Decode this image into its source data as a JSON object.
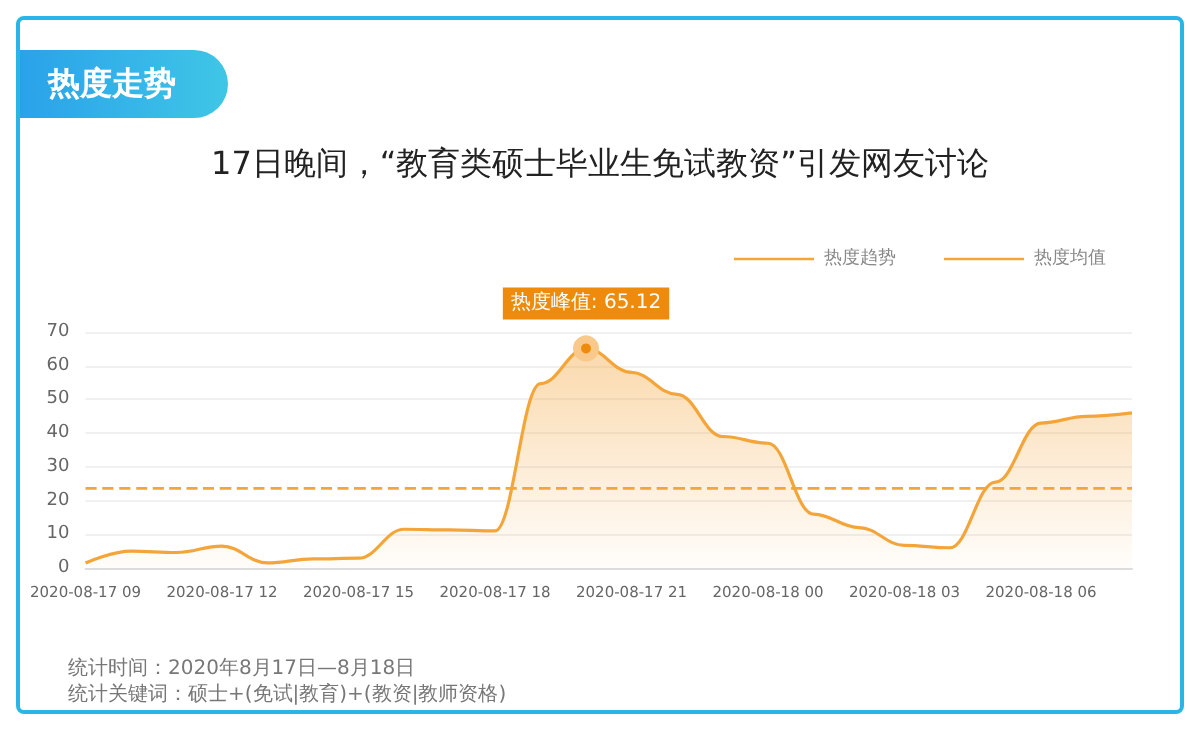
{
  "chart_data": {
    "type": "area",
    "title": "热度走势",
    "subtitle": "17日晚间，“教育类硕士毕业生免试教资”引发网友讨论",
    "categories": [
      "2020-08-17 09",
      null,
      null,
      "2020-08-17 12",
      null,
      null,
      "2020-08-17 15",
      null,
      null,
      "2020-08-17 18",
      null,
      null,
      "2020-08-17 21",
      null,
      null,
      "2020-08-18 00",
      null,
      null,
      "2020-08-18 03",
      null,
      null,
      "2020-08-18 06",
      null,
      null
    ],
    "series": [
      {
        "name": "热度趋势",
        "color": "#f4a53a",
        "values": [
          1.5,
          5,
          4.6,
          6.5,
          1.5,
          2.7,
          2.9,
          11.5,
          11.3,
          11,
          54.7,
          65.12,
          58,
          51.5,
          39,
          37,
          16,
          12,
          6.7,
          6,
          25.5,
          43,
          45,
          46
        ]
      },
      {
        "name": "热度均值",
        "type": "line",
        "line_style": "dashed",
        "color": "#f4a53a",
        "values": [
          23.6,
          23.6,
          23.6,
          23.6,
          23.6,
          23.6,
          23.6,
          23.6,
          23.6,
          23.6,
          23.6,
          23.6,
          23.6,
          23.6,
          23.6,
          23.6,
          23.6,
          23.6,
          23.6,
          23.6,
          23.6,
          23.6,
          23.6,
          23.6
        ]
      }
    ],
    "ylim": [
      0,
      70
    ],
    "yticks": [
      0,
      10,
      20,
      30,
      40,
      50,
      60,
      70
    ],
    "grid": "y",
    "legend": "top right",
    "marker": "none",
    "annotations": [
      {
        "text": "热度峰值: 65.12",
        "y": 65.12
      },
      "统计时间：2020年8月17日—8月18日",
      "统计关键词：硕士+(免试|教育)+(教资|教师资格)"
    ]
  }
}
